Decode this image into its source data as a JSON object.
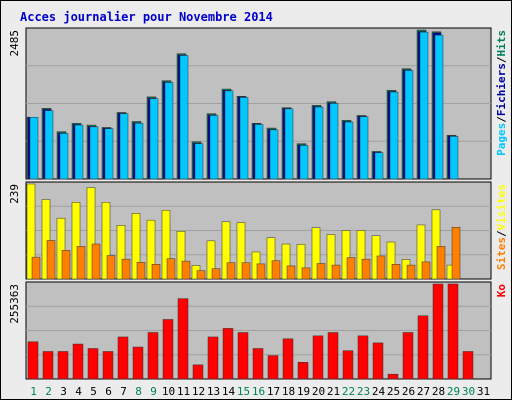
{
  "title": "Acces journalier pour Novembre 2014",
  "colors": {
    "title": "#0000cc",
    "background": "#c0c0c0",
    "pages": "#00c8ff",
    "fichiers": "#0000a0",
    "hits": "#00805c",
    "visites": "#ffff00",
    "sites": "#ff8000",
    "ko": "#ff0000",
    "weekend_day": "#00805c",
    "weekday": "#000000"
  },
  "chart_data": [
    {
      "type": "bar",
      "panel": "hits",
      "ymax_label": "2485",
      "ylim": [
        0,
        2485
      ],
      "legend": [
        "Pages",
        "Fichiers",
        "Hits"
      ],
      "legend_separator": "/",
      "categories": [
        "1",
        "2",
        "3",
        "4",
        "5",
        "6",
        "7",
        "8",
        "9",
        "10",
        "11",
        "12",
        "13",
        "14",
        "15",
        "16",
        "17",
        "18",
        "19",
        "20",
        "21",
        "22",
        "23",
        "24",
        "25",
        "26",
        "27",
        "28",
        "29",
        "30",
        "31"
      ],
      "series": [
        {
          "name": "Hits",
          "values": [
            1030,
            1180,
            790,
            930,
            900,
            860,
            1110,
            960,
            1370,
            1640,
            2090,
            620,
            1090,
            1500,
            1380,
            930,
            850,
            1190,
            590,
            1230,
            1290,
            980,
            1060,
            460,
            1480,
            1840,
            2485,
            2455,
            730,
            null,
            null
          ]
        },
        {
          "name": "Fichiers",
          "values": [
            1030,
            1160,
            770,
            910,
            880,
            850,
            1100,
            940,
            1350,
            1620,
            2070,
            600,
            1070,
            1480,
            1370,
            920,
            830,
            1180,
            570,
            1210,
            1270,
            960,
            1050,
            450,
            1460,
            1820,
            2460,
            2440,
            720,
            null,
            null
          ]
        },
        {
          "name": "Pages",
          "values": [
            1030,
            1140,
            760,
            900,
            870,
            840,
            1090,
            930,
            1340,
            1610,
            2060,
            590,
            1060,
            1470,
            1360,
            910,
            820,
            1170,
            560,
            1200,
            1260,
            950,
            1040,
            440,
            1450,
            1810,
            2450,
            2400,
            710,
            null,
            null
          ]
        }
      ]
    },
    {
      "type": "bar",
      "panel": "visits",
      "ymax_label": "239",
      "ylim": [
        0,
        239
      ],
      "legend": [
        "Sites",
        "Visites"
      ],
      "legend_separator": "/",
      "categories": [
        "1",
        "2",
        "3",
        "4",
        "5",
        "6",
        "7",
        "8",
        "9",
        "10",
        "11",
        "12",
        "13",
        "14",
        "15",
        "16",
        "17",
        "18",
        "19",
        "20",
        "21",
        "22",
        "23",
        "24",
        "25",
        "26",
        "27",
        "28",
        "29",
        "30",
        "31"
      ],
      "series": [
        {
          "name": "Visites",
          "values": [
            239,
            200,
            153,
            193,
            230,
            193,
            135,
            165,
            148,
            173,
            120,
            34,
            96,
            144,
            142,
            68,
            104,
            88,
            87,
            129,
            112,
            122,
            122,
            109,
            93,
            49,
            136,
            174,
            35,
            null,
            null
          ]
        },
        {
          "name": "Sites",
          "values": [
            55,
            97,
            72,
            82,
            88,
            59,
            50,
            42,
            37,
            51,
            45,
            21,
            26,
            41,
            41,
            38,
            46,
            33,
            28,
            39,
            35,
            54,
            50,
            58,
            37,
            35,
            43,
            82,
            130,
            null,
            null
          ]
        }
      ]
    },
    {
      "type": "bar",
      "panel": "ko",
      "ymax_label": "255363",
      "ylim": [
        0,
        255363
      ],
      "legend": [
        "Ko"
      ],
      "categories": [
        "1",
        "2",
        "3",
        "4",
        "5",
        "6",
        "7",
        "8",
        "9",
        "10",
        "11",
        "12",
        "13",
        "14",
        "15",
        "16",
        "17",
        "18",
        "19",
        "20",
        "21",
        "22",
        "23",
        "24",
        "25",
        "26",
        "27",
        "28",
        "29",
        "30",
        "31"
      ],
      "series": [
        {
          "name": "Ko",
          "values": [
            100000,
            74000,
            74000,
            94000,
            82000,
            74000,
            113000,
            86000,
            125000,
            160000,
            216000,
            38000,
            113000,
            136000,
            125000,
            82000,
            63000,
            108000,
            45000,
            116000,
            125000,
            76000,
            116000,
            97000,
            13000,
            125000,
            170000,
            255363,
            255363,
            74000,
            null
          ]
        }
      ]
    }
  ],
  "days": [
    "1",
    "2",
    "3",
    "4",
    "5",
    "6",
    "7",
    "8",
    "9",
    "10",
    "11",
    "12",
    "13",
    "14",
    "15",
    "16",
    "17",
    "18",
    "19",
    "20",
    "21",
    "22",
    "23",
    "24",
    "25",
    "26",
    "27",
    "28",
    "29",
    "30",
    "31"
  ],
  "weekend_days": [
    1,
    2,
    8,
    9,
    15,
    16,
    22,
    23,
    29,
    30
  ]
}
